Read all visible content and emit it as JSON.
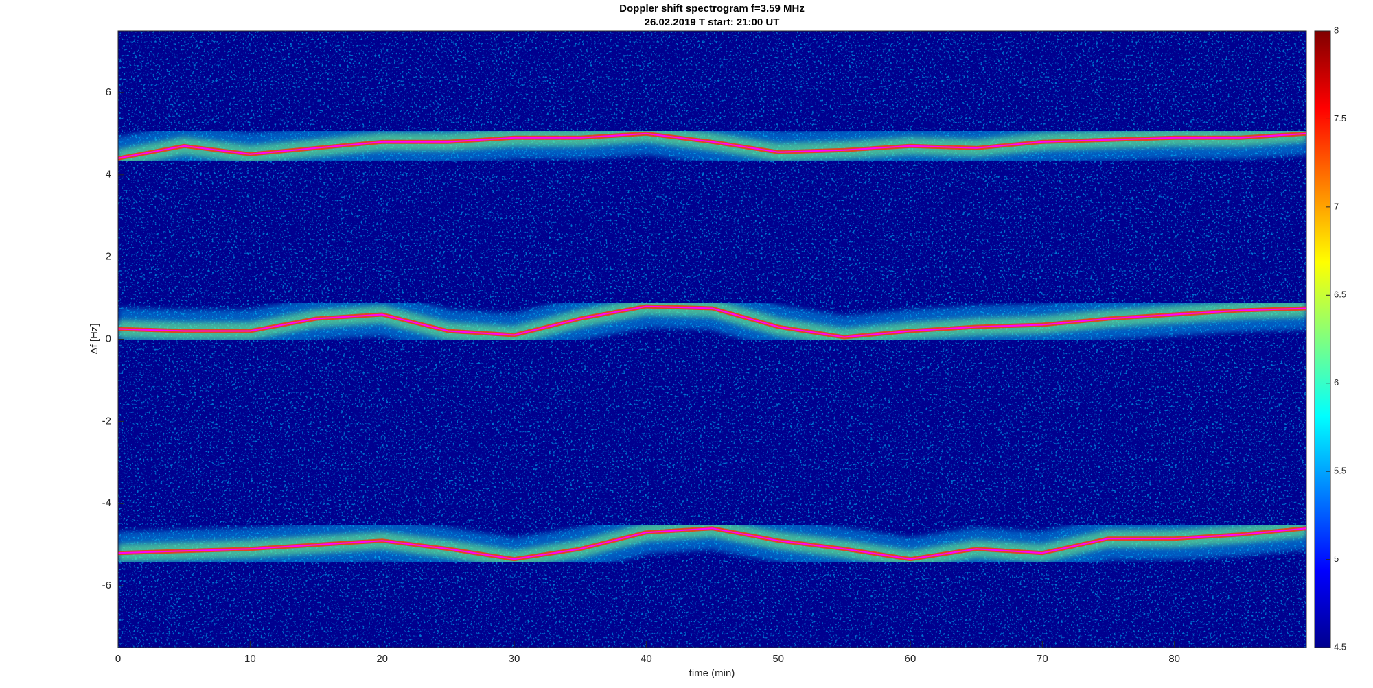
{
  "chart_data": {
    "type": "spectrogram",
    "title": "Doppler shift spectrogram f=3.59 MHz",
    "subtitle": "26.02.2019   T start: 21:00 UT",
    "x_label": "time (min)",
    "y_label": "Δf [Hz]",
    "x": [
      0,
      5,
      10,
      15,
      20,
      25,
      30,
      35,
      40,
      45,
      50,
      55,
      60,
      65,
      70,
      75,
      80,
      85,
      90
    ],
    "series": [
      {
        "color": "#ff00ff",
        "values": [
          4.4,
          4.7,
          4.5,
          4.65,
          4.8,
          4.8,
          4.9,
          4.9,
          5.0,
          4.8,
          4.55,
          4.6,
          4.7,
          4.65,
          4.8,
          4.85,
          4.9,
          4.9,
          5.0
        ]
      },
      {
        "color": "#ff00ff",
        "values": [
          0.25,
          0.2,
          0.2,
          0.5,
          0.6,
          0.2,
          0.1,
          0.5,
          0.8,
          0.75,
          0.3,
          0.05,
          0.2,
          0.3,
          0.35,
          0.5,
          0.6,
          0.7,
          0.75
        ]
      },
      {
        "color": "#ff00ff",
        "values": [
          -5.2,
          -5.15,
          -5.1,
          -5.0,
          -4.9,
          -5.1,
          -5.35,
          -5.1,
          -4.7,
          -4.6,
          -4.9,
          -5.1,
          -5.35,
          -5.1,
          -5.2,
          -4.85,
          -4.85,
          -4.75,
          -4.6
        ]
      }
    ],
    "background_color": "#00008f",
    "xlim": [
      0,
      90
    ],
    "xticks": [
      0,
      10,
      20,
      30,
      40,
      50,
      60,
      70,
      80
    ],
    "ylim": [
      -7.5,
      7.5
    ],
    "yticks": [
      -6,
      -4,
      -2,
      0,
      2,
      4,
      6
    ],
    "colorbar": {
      "colormap": "jet",
      "clim": [
        4.5,
        8
      ],
      "ticks": [
        4.5,
        5,
        5.5,
        6,
        6.5,
        7,
        7.5,
        8
      ]
    }
  }
}
